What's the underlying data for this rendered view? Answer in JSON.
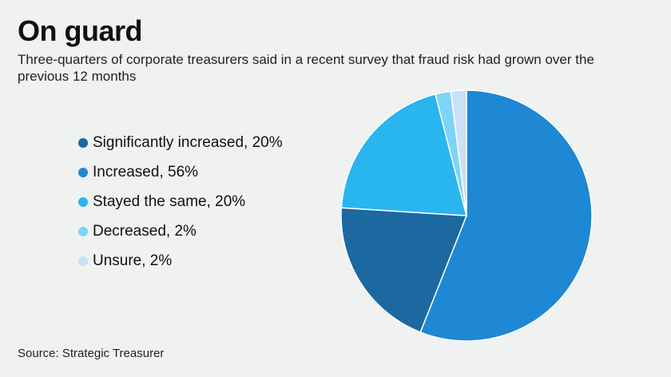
{
  "chart_data": {
    "type": "pie",
    "title": "On guard",
    "subtitle": "Three-quarters of corporate treasurers said in a recent survey that fraud risk had grown over the previous 12 months",
    "source": "Source: Strategic Treasurer",
    "slices": [
      {
        "name": "Increased",
        "value": 56,
        "color": "#1e88d4",
        "legend": "Increased, 56%"
      },
      {
        "name": "Significantly increased",
        "value": 20,
        "color": "#1b69a0",
        "legend": "Significantly increased, 20%"
      },
      {
        "name": "Stayed the same",
        "value": 20,
        "color": "#29b5f0",
        "legend": "Stayed the same, 20%"
      },
      {
        "name": "Decreased",
        "value": 2,
        "color": "#7dd4f7",
        "legend": "Decreased, 2%"
      },
      {
        "name": "Unsure",
        "value": 2,
        "color": "#c9e0f6",
        "legend": "Unsure, 2%"
      }
    ],
    "legend_order": [
      1,
      0,
      2,
      3,
      4
    ],
    "start": "top",
    "direction": "clockwise",
    "legend_position": "left"
  }
}
